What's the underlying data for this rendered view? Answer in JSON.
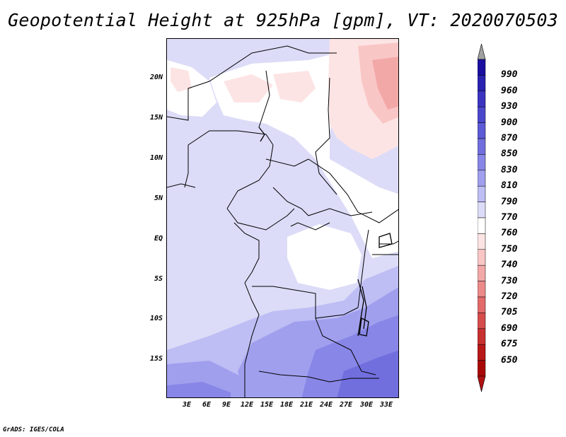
{
  "title": "Geopotential Height at 925hPa [gpm], VT: 2020070503",
  "credit": "GrADS: IGES/COLA",
  "map": {
    "lat_labels": [
      "20N",
      "15N",
      "10N",
      "5N",
      "EQ",
      "5S",
      "10S",
      "15S"
    ],
    "lon_labels": [
      "3E",
      "6E",
      "9E",
      "12E",
      "15E",
      "18E",
      "21E",
      "24E",
      "27E",
      "30E",
      "33E"
    ]
  },
  "colorbar": {
    "labels": [
      "990",
      "960",
      "930",
      "900",
      "870",
      "850",
      "830",
      "810",
      "790",
      "770",
      "760",
      "750",
      "740",
      "730",
      "720",
      "705",
      "690",
      "675",
      "650"
    ],
    "colors": [
      "#1a0fa0",
      "#2a22b0",
      "#3b34c0",
      "#4b47cc",
      "#5d5ad6",
      "#716fde",
      "#8886e6",
      "#a09fee",
      "#bebdf4",
      "#dcdcf8",
      "#ffffff",
      "#fde4e4",
      "#f9c6c6",
      "#f3a8a8",
      "#ec8a8a",
      "#e26a6a",
      "#d64c4c",
      "#c83030",
      "#b81818",
      "#a80808"
    ],
    "top_arrow_color": "#a0a0a0",
    "bottom_arrow_color": "#b01010"
  }
}
